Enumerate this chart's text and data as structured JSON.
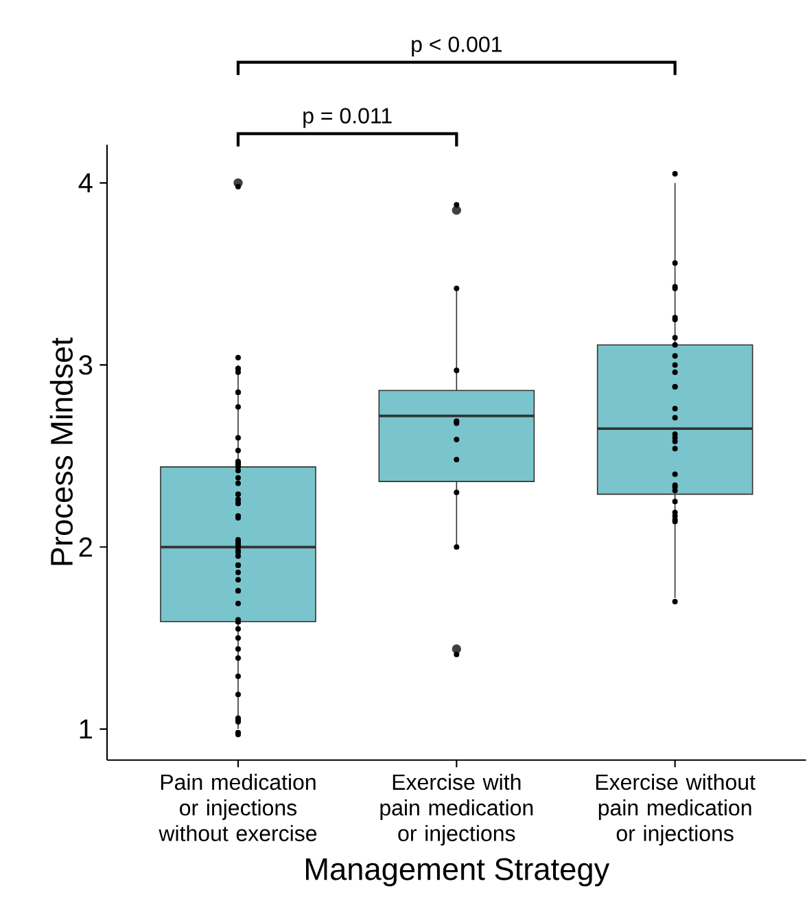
{
  "chart_data": {
    "type": "box",
    "xlabel": "Management Strategy",
    "ylabel": "Process Mindset",
    "categories": [
      "Pain medication or injections without exercise",
      "Exercise with pain medication or injections",
      "Exercise without pain medication or injections"
    ],
    "ylim": [
      0.83,
      4.21
    ],
    "yticks": [
      1,
      2,
      3,
      4
    ],
    "annotations": [
      "p = 0.011",
      "p < 0.001"
    ],
    "series": [
      {
        "type": "box",
        "color": "#7ac5cd",
        "boxes": [
          {
            "low": 1.0,
            "q1": 1.59,
            "median": 2.0,
            "q3": 2.44,
            "high": 3.0,
            "outliers": [
              4.0
            ]
          },
          {
            "low": 2.0,
            "q1": 2.36,
            "median": 2.72,
            "q3": 2.86,
            "high": 3.42,
            "outliers": [
              3.85,
              1.44
            ]
          },
          {
            "low": 1.72,
            "q1": 2.29,
            "median": 2.65,
            "q3": 3.11,
            "high": 4.0
          }
        ]
      },
      {
        "type": "scatter",
        "color": "#000000",
        "x": [
          "Pain medication or injections without exercise",
          "Pain medication or injections without exercise",
          "Pain medication or injections without exercise",
          "Pain medication or injections without exercise",
          "Pain medication or injections without exercise",
          "Pain medication or injections without exercise",
          "Pain medication or injections without exercise",
          "Pain medication or injections without exercise",
          "Pain medication or injections without exercise",
          "Pain medication or injections without exercise",
          "Pain medication or injections without exercise",
          "Pain medication or injections without exercise",
          "Pain medication or injections without exercise",
          "Pain medication or injections without exercise",
          "Pain medication or injections without exercise",
          "Pain medication or injections without exercise",
          "Pain medication or injections without exercise",
          "Pain medication or injections without exercise",
          "Pain medication or injections without exercise",
          "Pain medication or injections without exercise",
          "Pain medication or injections without exercise",
          "Pain medication or injections without exercise",
          "Pain medication or injections without exercise",
          "Pain medication or injections without exercise",
          "Pain medication or injections without exercise",
          "Pain medication or injections without exercise",
          "Pain medication or injections without exercise",
          "Pain medication or injections without exercise",
          "Pain medication or injections without exercise",
          "Pain medication or injections without exercise",
          "Pain medication or injections without exercise",
          "Pain medication or injections without exercise",
          "Pain medication or injections without exercise",
          "Pain medication or injections without exercise",
          "Pain medication or injections without exercise",
          "Pain medication or injections without exercise",
          "Pain medication or injections without exercise",
          "Pain medication or injections without exercise",
          "Pain medication or injections without exercise",
          "Pain medication or injections without exercise",
          "Pain medication or injections without exercise",
          "Pain medication or injections without exercise",
          "Pain medication or injections without exercise",
          "Pain medication or injections without exercise",
          "Pain medication or injections without exercise",
          "Pain medication or injections without exercise",
          "Pain medication or injections without exercise",
          "Pain medication or injections without exercise",
          "Pain medication or injections without exercise",
          "Pain medication or injections without exercise",
          "Pain medication or injections without exercise",
          "Pain medication or injections without exercise",
          "Pain medication or injections without exercise",
          "Pain medication or injections without exercise",
          "Pain medication or injections without exercise",
          "Pain medication or injections without exercise",
          "Pain medication or injections without exercise",
          "Pain medication or injections without exercise",
          "Pain medication or injections without exercise",
          "Pain medication or injections without exercise",
          "Exercise with pain medication or injections",
          "Exercise with pain medication or injections",
          "Exercise with pain medication or injections",
          "Exercise with pain medication or injections",
          "Exercise with pain medication or injections",
          "Exercise with pain medication or injections",
          "Exercise with pain medication or injections",
          "Exercise with pain medication or injections",
          "Exercise with pain medication or injections",
          "Exercise with pain medication or injections",
          "Exercise with pain medication or injections",
          "Exercise without pain medication or injections",
          "Exercise without pain medication or injections",
          "Exercise without pain medication or injections",
          "Exercise without pain medication or injections",
          "Exercise without pain medication or injections",
          "Exercise without pain medication or injections",
          "Exercise without pain medication or injections",
          "Exercise without pain medication or injections",
          "Exercise without pain medication or injections",
          "Exercise without pain medication or injections",
          "Exercise without pain medication or injections",
          "Exercise without pain medication or injections",
          "Exercise without pain medication or injections",
          "Exercise without pain medication or injections",
          "Exercise without pain medication or injections",
          "Exercise without pain medication or injections",
          "Exercise without pain medication or injections",
          "Exercise without pain medication or injections",
          "Exercise without pain medication or injections",
          "Exercise without pain medication or injections",
          "Exercise without pain medication or injections",
          "Exercise without pain medication or injections",
          "Exercise without pain medication or injections",
          "Exercise without pain medication or injections",
          "Exercise without pain medication or injections",
          "Exercise without pain medication or injections",
          "Exercise without pain medication or injections",
          "Exercise without pain medication or injections",
          "Exercise without pain medication or injections"
        ],
        "values": [
          3.98,
          2.98,
          2.98,
          2.96,
          3.04,
          2.85,
          2.85,
          2.77,
          2.6,
          2.47,
          2.45,
          2.53,
          2.46,
          2.46,
          2.44,
          2.42,
          2.38,
          2.35,
          2.29,
          2.29,
          2.26,
          2.26,
          2.24,
          2.24,
          2.17,
          2.17,
          2.16,
          2.02,
          2.03,
          2.01,
          2.04,
          2.0,
          1.98,
          1.97,
          1.95,
          1.9,
          1.9,
          1.9,
          1.86,
          1.82,
          1.76,
          1.76,
          1.69,
          1.59,
          1.59,
          1.59,
          1.59,
          1.6,
          1.55,
          1.5,
          1.44,
          1.39,
          1.29,
          1.19,
          1.06,
          1.05,
          1.04,
          0.98,
          0.98,
          0.97,
          3.88,
          3.42,
          2.97,
          2.69,
          2.69,
          2.68,
          2.59,
          2.48,
          2.3,
          2.0,
          1.41,
          4.05,
          3.56,
          3.43,
          3.42,
          3.26,
          3.25,
          3.15,
          3.11,
          3.05,
          3.0,
          2.96,
          2.88,
          2.88,
          2.76,
          2.71,
          2.62,
          2.6,
          2.58,
          2.54,
          2.4,
          2.34,
          2.33,
          2.31,
          2.25,
          2.19,
          2.17,
          2.15,
          2.14,
          1.7
        ]
      }
    ]
  }
}
